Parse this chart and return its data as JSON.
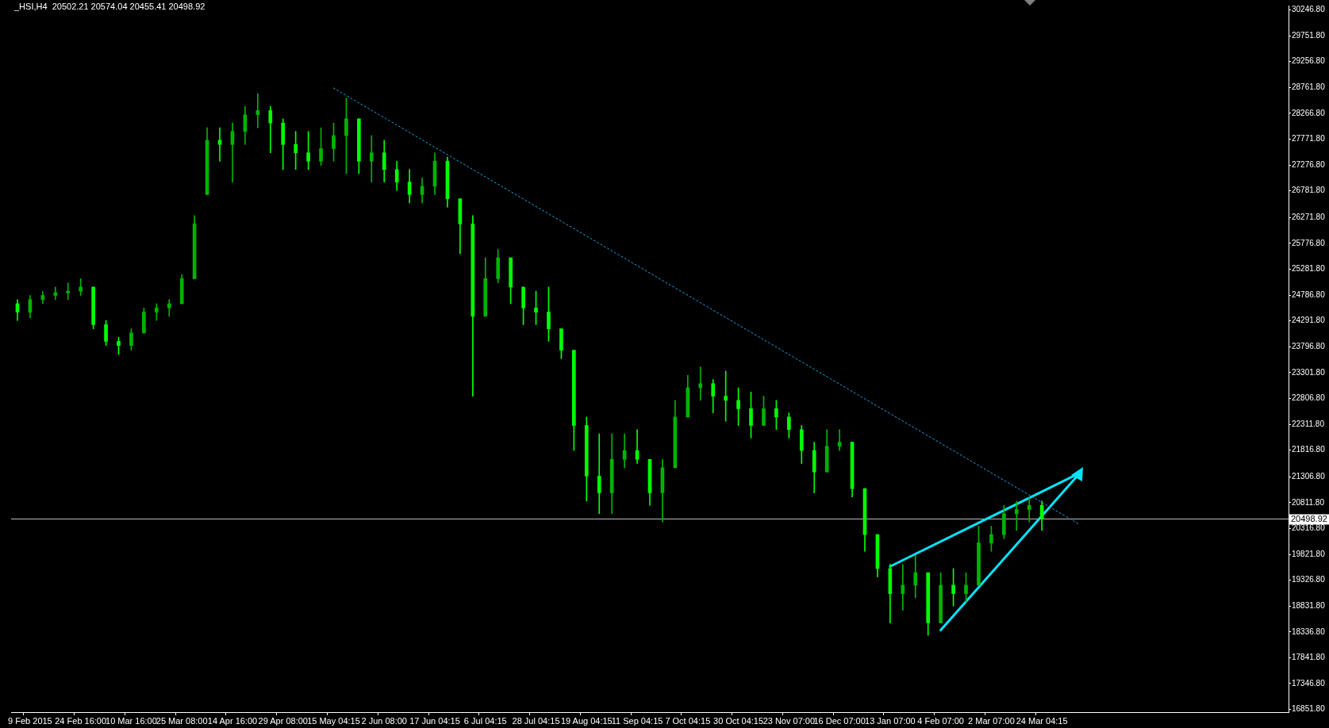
{
  "chart_data": {
    "type": "candlestick",
    "title": "_HSI,H4  20502.21 20574.04 20455.41 20498.92",
    "colors": [
      "#00ff00",
      "#00b400",
      "#00b400",
      "#00b400",
      "#00b400",
      "#00b400",
      "#00ff00",
      "#00ff00",
      "#00ff00",
      "#00b400",
      "#00b400",
      "#00b400",
      "#00b400",
      "#00b400",
      "#00b400",
      "#00b400",
      "#00ff00",
      "#00b400",
      "#00b400",
      "#00b400",
      "#00ff00",
      "#00ff00",
      "#00ff00",
      "#00ff00",
      "#00b400",
      "#00b400",
      "#00b400",
      "#00ff00",
      "#00b400",
      "#00ff00",
      "#00ff00",
      "#00ff00",
      "#00b400",
      "#00b400",
      "#00ff00",
      "#00ff00",
      "#00ff00",
      "#00b400",
      "#00b400",
      "#00ff00",
      "#00ff00",
      "#00ff00",
      "#00ff00",
      "#00ff00",
      "#00ff00",
      "#00ff00",
      "#00ff00",
      "#00b400",
      "#00b400",
      "#00ff00",
      "#00ff00",
      "#00b400",
      "#00b400",
      "#00b400",
      "#00b400",
      "#00ff00",
      "#00ff00",
      "#00ff00",
      "#00ff00",
      "#00b400",
      "#00ff00",
      "#00ff00",
      "#00ff00",
      "#00ff00",
      "#00b400",
      "#00b400",
      "#00ff00",
      "#00ff00",
      "#00ff00",
      "#00ff00",
      "#00b400",
      "#00b400",
      "#00ff00",
      "#00b400",
      "#00ff00",
      "#00b400",
      "#00b400",
      "#00b400",
      "#00b400",
      "#00b400",
      "#00b400",
      "#00ff00",
      null,
      null,
      null,
      null,
      null,
      null,
      null,
      null,
      null,
      null,
      null,
      null,
      null,
      null,
      null,
      null,
      null,
      null,
      null
    ],
    "categories": [
      null,
      "9 Feb 2015",
      null,
      null,
      null,
      "24 Feb 16:00",
      null,
      null,
      null,
      "10 Mar 16:00",
      null,
      null,
      null,
      "25 Mar 08:00",
      null,
      null,
      null,
      "14 Apr 16:00",
      null,
      null,
      null,
      "29 Apr 08:00",
      null,
      null,
      null,
      "15 May 04:15",
      null,
      null,
      null,
      "2 Jun 08:00",
      null,
      null,
      null,
      "17 Jun 04:15",
      null,
      null,
      null,
      "6 Jul 04:15",
      null,
      null,
      null,
      "28 Jul 04:15",
      null,
      null,
      null,
      "19 Aug 04:15",
      null,
      null,
      null,
      "11 Sep 04:15",
      null,
      null,
      null,
      "7 Oct 04:15",
      null,
      null,
      null,
      "30 Oct 04:15",
      null,
      null,
      null,
      "23 Nov 07:00",
      null,
      null,
      null,
      "16 Dec 07:00",
      null,
      null,
      null,
      "13 Jan 07:00",
      null,
      null,
      null,
      "4 Feb 07:00",
      null,
      null,
      null,
      "2 Mar 07:00",
      null,
      null,
      null,
      "24 Mar 04:15",
      null,
      null,
      null,
      null,
      null,
      null,
      null,
      null,
      null,
      null,
      null,
      null,
      null,
      null,
      null,
      null,
      null,
      null,
      null
    ],
    "ohlc": [
      [
        24620,
        24700,
        24300,
        24460
      ],
      [
        24460,
        24780,
        24350,
        24700
      ],
      [
        24700,
        24860,
        24620,
        24780
      ],
      [
        24780,
        24940,
        24700,
        24830
      ],
      [
        24830,
        25020,
        24700,
        24860
      ],
      [
        24860,
        25100,
        24780,
        24940
      ],
      [
        24940,
        24940,
        24140,
        24220
      ],
      [
        24220,
        24300,
        23820,
        23900
      ],
      [
        23900,
        23980,
        23650,
        23820
      ],
      [
        23820,
        24140,
        23730,
        24060
      ],
      [
        24060,
        24540,
        24060,
        24460
      ],
      [
        24460,
        24620,
        24300,
        24540
      ],
      [
        24540,
        24700,
        24380,
        24620
      ],
      [
        24620,
        25180,
        24620,
        25100
      ],
      [
        25100,
        26310,
        25100,
        26150
      ],
      [
        26710,
        27990,
        26710,
        27750
      ],
      [
        27750,
        27990,
        27350,
        27670
      ],
      [
        27670,
        28080,
        26950,
        27920
      ],
      [
        27920,
        28400,
        27670,
        28240
      ],
      [
        28240,
        28640,
        27990,
        28320
      ],
      [
        28320,
        28400,
        27510,
        28080
      ],
      [
        28080,
        28160,
        27190,
        27670
      ],
      [
        27670,
        27920,
        27190,
        27510
      ],
      [
        27510,
        27920,
        27190,
        27350
      ],
      [
        27350,
        27990,
        27270,
        27590
      ],
      [
        27590,
        28080,
        27350,
        27840
      ],
      [
        27840,
        28560,
        27110,
        28160
      ],
      [
        28160,
        28160,
        27110,
        27350
      ],
      [
        27350,
        27840,
        26950,
        27510
      ],
      [
        27510,
        27750,
        26950,
        27190
      ],
      [
        27190,
        27350,
        26790,
        26950
      ],
      [
        26950,
        27190,
        26550,
        26710
      ],
      [
        26710,
        27030,
        26550,
        26870
      ],
      [
        26870,
        27510,
        26710,
        27350
      ],
      [
        27350,
        27430,
        26470,
        26630
      ],
      [
        26630,
        26630,
        25580,
        26150
      ],
      [
        26150,
        26310,
        22850,
        24380
      ],
      [
        24380,
        25500,
        24380,
        25100
      ],
      [
        25100,
        25660,
        25020,
        25500
      ],
      [
        25500,
        25500,
        24620,
        24940
      ],
      [
        24940,
        24940,
        24220,
        24540
      ],
      [
        24540,
        24860,
        24220,
        24460
      ],
      [
        24460,
        24940,
        23900,
        24140
      ],
      [
        24140,
        24140,
        23570,
        23730
      ],
      [
        23730,
        23730,
        21810,
        22290
      ],
      [
        22290,
        22450,
        20840,
        21320
      ],
      [
        21320,
        22130,
        20600,
        21000
      ],
      [
        21000,
        22130,
        20600,
        21640
      ],
      [
        21640,
        22130,
        21480,
        21810
      ],
      [
        21810,
        22210,
        21560,
        21640
      ],
      [
        21640,
        21640,
        20760,
        21000
      ],
      [
        21000,
        21640,
        20440,
        21480
      ],
      [
        21480,
        22770,
        21480,
        22450
      ],
      [
        22450,
        23250,
        22450,
        23010
      ],
      [
        23010,
        23410,
        22770,
        23090
      ],
      [
        23090,
        23170,
        22530,
        22850
      ],
      [
        22850,
        23330,
        22370,
        22770
      ],
      [
        22770,
        23010,
        22290,
        22610
      ],
      [
        22610,
        22930,
        22050,
        22290
      ],
      [
        22290,
        22850,
        22290,
        22610
      ],
      [
        22610,
        22770,
        22210,
        22450
      ],
      [
        22450,
        22530,
        22050,
        22210
      ],
      [
        22210,
        22290,
        21560,
        21810
      ],
      [
        21810,
        21970,
        21000,
        21400
      ],
      [
        21400,
        22210,
        21400,
        21890
      ],
      [
        21890,
        22210,
        21810,
        21970
      ],
      [
        21970,
        21970,
        20920,
        21080
      ],
      [
        21080,
        21080,
        19880,
        20200
      ],
      [
        20200,
        20200,
        19390,
        19550
      ],
      [
        19550,
        19630,
        18510,
        19070
      ],
      [
        19070,
        19630,
        18750,
        19230
      ],
      [
        19230,
        19800,
        18990,
        19470
      ],
      [
        19470,
        19470,
        18270,
        18510
      ],
      [
        18510,
        19470,
        18510,
        19230
      ],
      [
        19230,
        19550,
        18830,
        19070
      ],
      [
        19070,
        19470,
        18910,
        19230
      ],
      [
        19230,
        20360,
        19230,
        20040
      ],
      [
        20040,
        20360,
        19880,
        20200
      ],
      [
        20200,
        20760,
        20120,
        20600
      ],
      [
        20600,
        20840,
        20280,
        20680
      ],
      [
        20680,
        20920,
        20440,
        20760
      ],
      [
        20760,
        20840,
        20280,
        20498.92
      ],
      null,
      null,
      null,
      null,
      null,
      null,
      null,
      null,
      null,
      null,
      null,
      null,
      null,
      null,
      null,
      null,
      null,
      null,
      null
    ],
    "series": [
      {
        "type": "line",
        "color": "#1ea0e6",
        "line_style": "dotted",
        "values": [
          null,
          null,
          null,
          null,
          null,
          null,
          null,
          null,
          null,
          null,
          null,
          null,
          null,
          null,
          null,
          null,
          null,
          null,
          null,
          null,
          null,
          null,
          null,
          null,
          null,
          28750,
          null,
          null,
          null,
          null,
          null,
          null,
          null,
          null,
          null,
          null,
          null,
          null,
          null,
          null,
          null,
          null,
          null,
          null,
          null,
          null,
          null,
          null,
          null,
          null,
          null,
          null,
          null,
          null,
          null,
          null,
          null,
          null,
          null,
          null,
          null,
          null,
          null,
          null,
          null,
          null,
          null,
          null,
          null,
          null,
          null,
          null,
          null,
          null,
          null,
          null,
          null,
          null,
          null,
          null,
          null,
          null,
          null,
          null,
          20390,
          null,
          null,
          null,
          null,
          null,
          null,
          null,
          null,
          null,
          null,
          null,
          null,
          null,
          null,
          null,
          null
        ]
      },
      {
        "type": "line",
        "color": "#00e5ff",
        "line_style": "solid",
        "values": [
          null,
          null,
          null,
          null,
          null,
          null,
          null,
          null,
          null,
          null,
          null,
          null,
          null,
          null,
          null,
          null,
          null,
          null,
          null,
          null,
          null,
          null,
          null,
          null,
          null,
          null,
          null,
          null,
          null,
          null,
          null,
          null,
          null,
          null,
          null,
          null,
          null,
          null,
          null,
          null,
          null,
          null,
          null,
          null,
          null,
          null,
          null,
          null,
          null,
          null,
          null,
          null,
          null,
          null,
          null,
          null,
          null,
          null,
          null,
          null,
          null,
          null,
          null,
          null,
          null,
          null,
          null,
          null,
          null,
          19590,
          null,
          null,
          null,
          null,
          null,
          null,
          null,
          null,
          null,
          null,
          null,
          null,
          null,
          null,
          21380,
          null,
          null,
          null,
          null,
          null,
          null,
          null,
          null,
          null,
          null,
          null,
          null,
          null,
          null,
          null,
          null
        ]
      },
      {
        "type": "line",
        "color": "#00e5ff",
        "line_style": "solid",
        "values": [
          null,
          null,
          null,
          null,
          null,
          null,
          null,
          null,
          null,
          null,
          null,
          null,
          null,
          null,
          null,
          null,
          null,
          null,
          null,
          null,
          null,
          null,
          null,
          null,
          null,
          null,
          null,
          null,
          null,
          null,
          null,
          null,
          null,
          null,
          null,
          null,
          null,
          null,
          null,
          null,
          null,
          null,
          null,
          null,
          null,
          null,
          null,
          null,
          null,
          null,
          null,
          null,
          null,
          null,
          null,
          null,
          null,
          null,
          null,
          null,
          null,
          null,
          null,
          null,
          null,
          null,
          null,
          null,
          null,
          null,
          null,
          null,
          null,
          18370,
          null,
          null,
          null,
          null,
          null,
          null,
          null,
          null,
          null,
          null,
          21380,
          null,
          null,
          null,
          null,
          null,
          null,
          null,
          null,
          null,
          null,
          null,
          null,
          null,
          null,
          null,
          null
        ]
      }
    ],
    "ylim": [
      16800,
      30330
    ],
    "yticks": [
      {
        "value": 30246.8,
        "label": "30246.80"
      },
      {
        "value": 29751.8,
        "label": "29751.80"
      },
      {
        "value": 29256.8,
        "label": "29256.80"
      },
      {
        "value": 28761.8,
        "label": "28761.80"
      },
      {
        "value": 28266.8,
        "label": "28266.80"
      },
      {
        "value": 27771.8,
        "label": "27771.80"
      },
      {
        "value": 27276.8,
        "label": "27276.80"
      },
      {
        "value": 26781.8,
        "label": "26781.80"
      },
      {
        "value": 26271.8,
        "label": "26271.80"
      },
      {
        "value": 25776.8,
        "label": "25776.80"
      },
      {
        "value": 25281.8,
        "label": "25281.80"
      },
      {
        "value": 24786.8,
        "label": "24786.80"
      },
      {
        "value": 24291.8,
        "label": "24291.80"
      },
      {
        "value": 23796.8,
        "label": "23796.80"
      },
      {
        "value": 23301.8,
        "label": "23301.80"
      },
      {
        "value": 22806.8,
        "label": "22806.80"
      },
      {
        "value": 22311.8,
        "label": "22311.80"
      },
      {
        "value": 21816.8,
        "label": "21816.80"
      },
      {
        "value": 21306.8,
        "label": "21306.80"
      },
      {
        "value": 20811.8,
        "label": "20811.80"
      },
      {
        "value": 20316.8,
        "label": "20316.80"
      },
      {
        "value": 19821.8,
        "label": "19821.80"
      },
      {
        "value": 19326.8,
        "label": "19326.80"
      },
      {
        "value": 18831.8,
        "label": "18831.80"
      },
      {
        "value": 18336.8,
        "label": "18336.80"
      },
      {
        "value": 17841.8,
        "label": "17841.80"
      },
      {
        "value": 17346.8,
        "label": "17346.80"
      },
      {
        "value": 16851.8,
        "label": "16851.80"
      }
    ],
    "ref_lines": [
      {
        "axis": "y",
        "value": 20498.92,
        "label": "20498.92",
        "color": "#c0c0c0"
      }
    ]
  }
}
